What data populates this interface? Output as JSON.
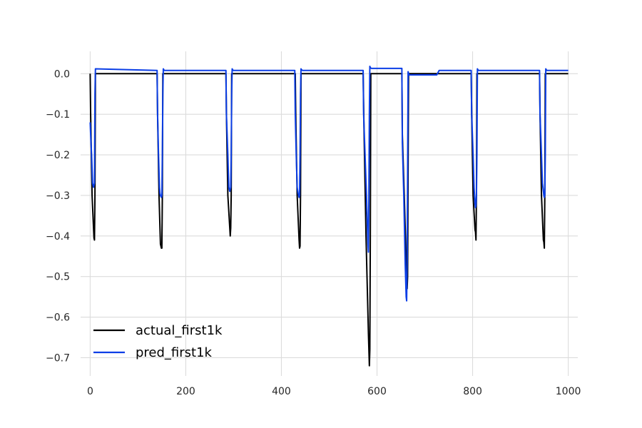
{
  "chart_data": {
    "type": "line",
    "title": "",
    "xlabel": "",
    "ylabel": "",
    "xlim": [
      -20,
      1020
    ],
    "ylim": [
      -0.745,
      0.055
    ],
    "x_ticks": [
      0,
      200,
      400,
      600,
      800,
      1000
    ],
    "x_tick_labels": [
      "0",
      "200",
      "400",
      "600",
      "800",
      "1000"
    ],
    "y_ticks": [
      0.0,
      -0.1,
      -0.2,
      -0.3,
      -0.4,
      -0.5,
      -0.6,
      -0.7
    ],
    "y_tick_labels": [
      "0.0",
      "−0.1",
      "−0.2",
      "−0.3",
      "−0.4",
      "−0.5",
      "−0.6",
      "−0.7"
    ],
    "grid": true,
    "legend_position": "lower-left",
    "series": [
      {
        "name": "actual_first1k",
        "color": "#000000",
        "x": [
          0,
          1,
          4,
          7,
          8,
          9,
          10,
          11,
          140,
          141,
          144,
          147,
          149,
          150,
          151,
          152,
          284,
          285,
          288,
          292,
          293,
          294,
          295,
          296,
          429,
          430,
          433,
          437,
          438,
          439,
          440,
          441,
          571,
          573,
          577,
          582,
          584,
          585,
          586,
          587,
          652,
          653,
          657,
          661,
          663,
          664,
          665,
          666,
          797,
          798,
          801,
          805,
          806,
          807,
          808,
          809,
          940,
          941,
          944,
          948,
          949,
          950,
          951,
          952,
          1000
        ],
        "y": [
          0.0,
          -0.1,
          -0.3,
          -0.38,
          -0.405,
          -0.41,
          -0.3,
          0.0,
          0.0,
          -0.1,
          -0.3,
          -0.42,
          -0.43,
          -0.43,
          -0.3,
          0.0,
          0.0,
          -0.1,
          -0.3,
          -0.38,
          -0.4,
          -0.38,
          -0.3,
          0.0,
          0.0,
          -0.1,
          -0.3,
          -0.41,
          -0.43,
          -0.425,
          -0.3,
          0.0,
          0.0,
          -0.15,
          -0.4,
          -0.64,
          -0.72,
          -0.68,
          -0.4,
          0.0,
          0.0,
          -0.15,
          -0.3,
          -0.46,
          -0.53,
          -0.5,
          -0.25,
          0.0,
          0.0,
          -0.1,
          -0.3,
          -0.385,
          -0.39,
          -0.41,
          -0.3,
          0.0,
          0.0,
          -0.1,
          -0.3,
          -0.41,
          -0.415,
          -0.43,
          -0.3,
          0.0,
          0.0
        ]
      },
      {
        "name": "pred_first1k",
        "color": "#0b3ee6",
        "x": [
          0,
          1,
          3,
          5,
          7,
          9,
          10,
          11,
          140,
          141,
          143,
          145,
          146,
          147,
          149,
          150,
          151,
          152,
          153,
          155,
          284,
          285,
          288,
          290,
          292,
          293,
          294,
          295,
          296,
          297,
          299,
          428,
          429,
          431,
          433,
          435,
          436,
          437,
          438,
          439,
          440,
          441,
          442,
          444,
          571,
          572,
          575,
          578,
          580,
          581,
          582,
          583,
          584,
          585,
          586,
          588,
          652,
          653,
          656,
          659,
          661,
          662,
          663,
          664,
          665,
          667,
          725,
          730,
          797,
          798,
          801,
          803,
          805,
          806,
          807,
          808,
          809,
          810,
          812,
          940,
          941,
          944,
          946,
          948,
          949,
          950,
          951,
          952,
          953,
          955,
          1000
        ],
        "y": [
          -0.12,
          -0.15,
          -0.2,
          -0.27,
          -0.28,
          -0.27,
          -0.05,
          0.012,
          0.008,
          -0.1,
          -0.2,
          -0.28,
          -0.295,
          -0.3,
          -0.305,
          -0.3,
          -0.2,
          -0.05,
          0.012,
          0.008,
          0.008,
          -0.1,
          -0.2,
          -0.28,
          -0.29,
          -0.285,
          -0.28,
          -0.2,
          -0.05,
          0.012,
          0.008,
          0.008,
          -0.1,
          -0.2,
          -0.28,
          -0.295,
          -0.3,
          -0.305,
          -0.3,
          -0.2,
          -0.05,
          0.012,
          0.01,
          0.008,
          0.008,
          -0.1,
          -0.2,
          -0.3,
          -0.38,
          -0.42,
          -0.44,
          -0.3,
          -0.1,
          0.018,
          0.015,
          0.013,
          0.013,
          -0.17,
          -0.3,
          -0.47,
          -0.55,
          -0.56,
          -0.45,
          -0.25,
          0.005,
          -0.003,
          -0.003,
          0.008,
          0.008,
          -0.1,
          -0.2,
          -0.28,
          -0.32,
          -0.33,
          -0.325,
          -0.3,
          -0.2,
          0.012,
          0.008,
          0.008,
          -0.1,
          -0.2,
          -0.27,
          -0.29,
          -0.3,
          -0.305,
          -0.3,
          -0.2,
          0.012,
          0.008,
          0.008
        ]
      }
    ]
  }
}
